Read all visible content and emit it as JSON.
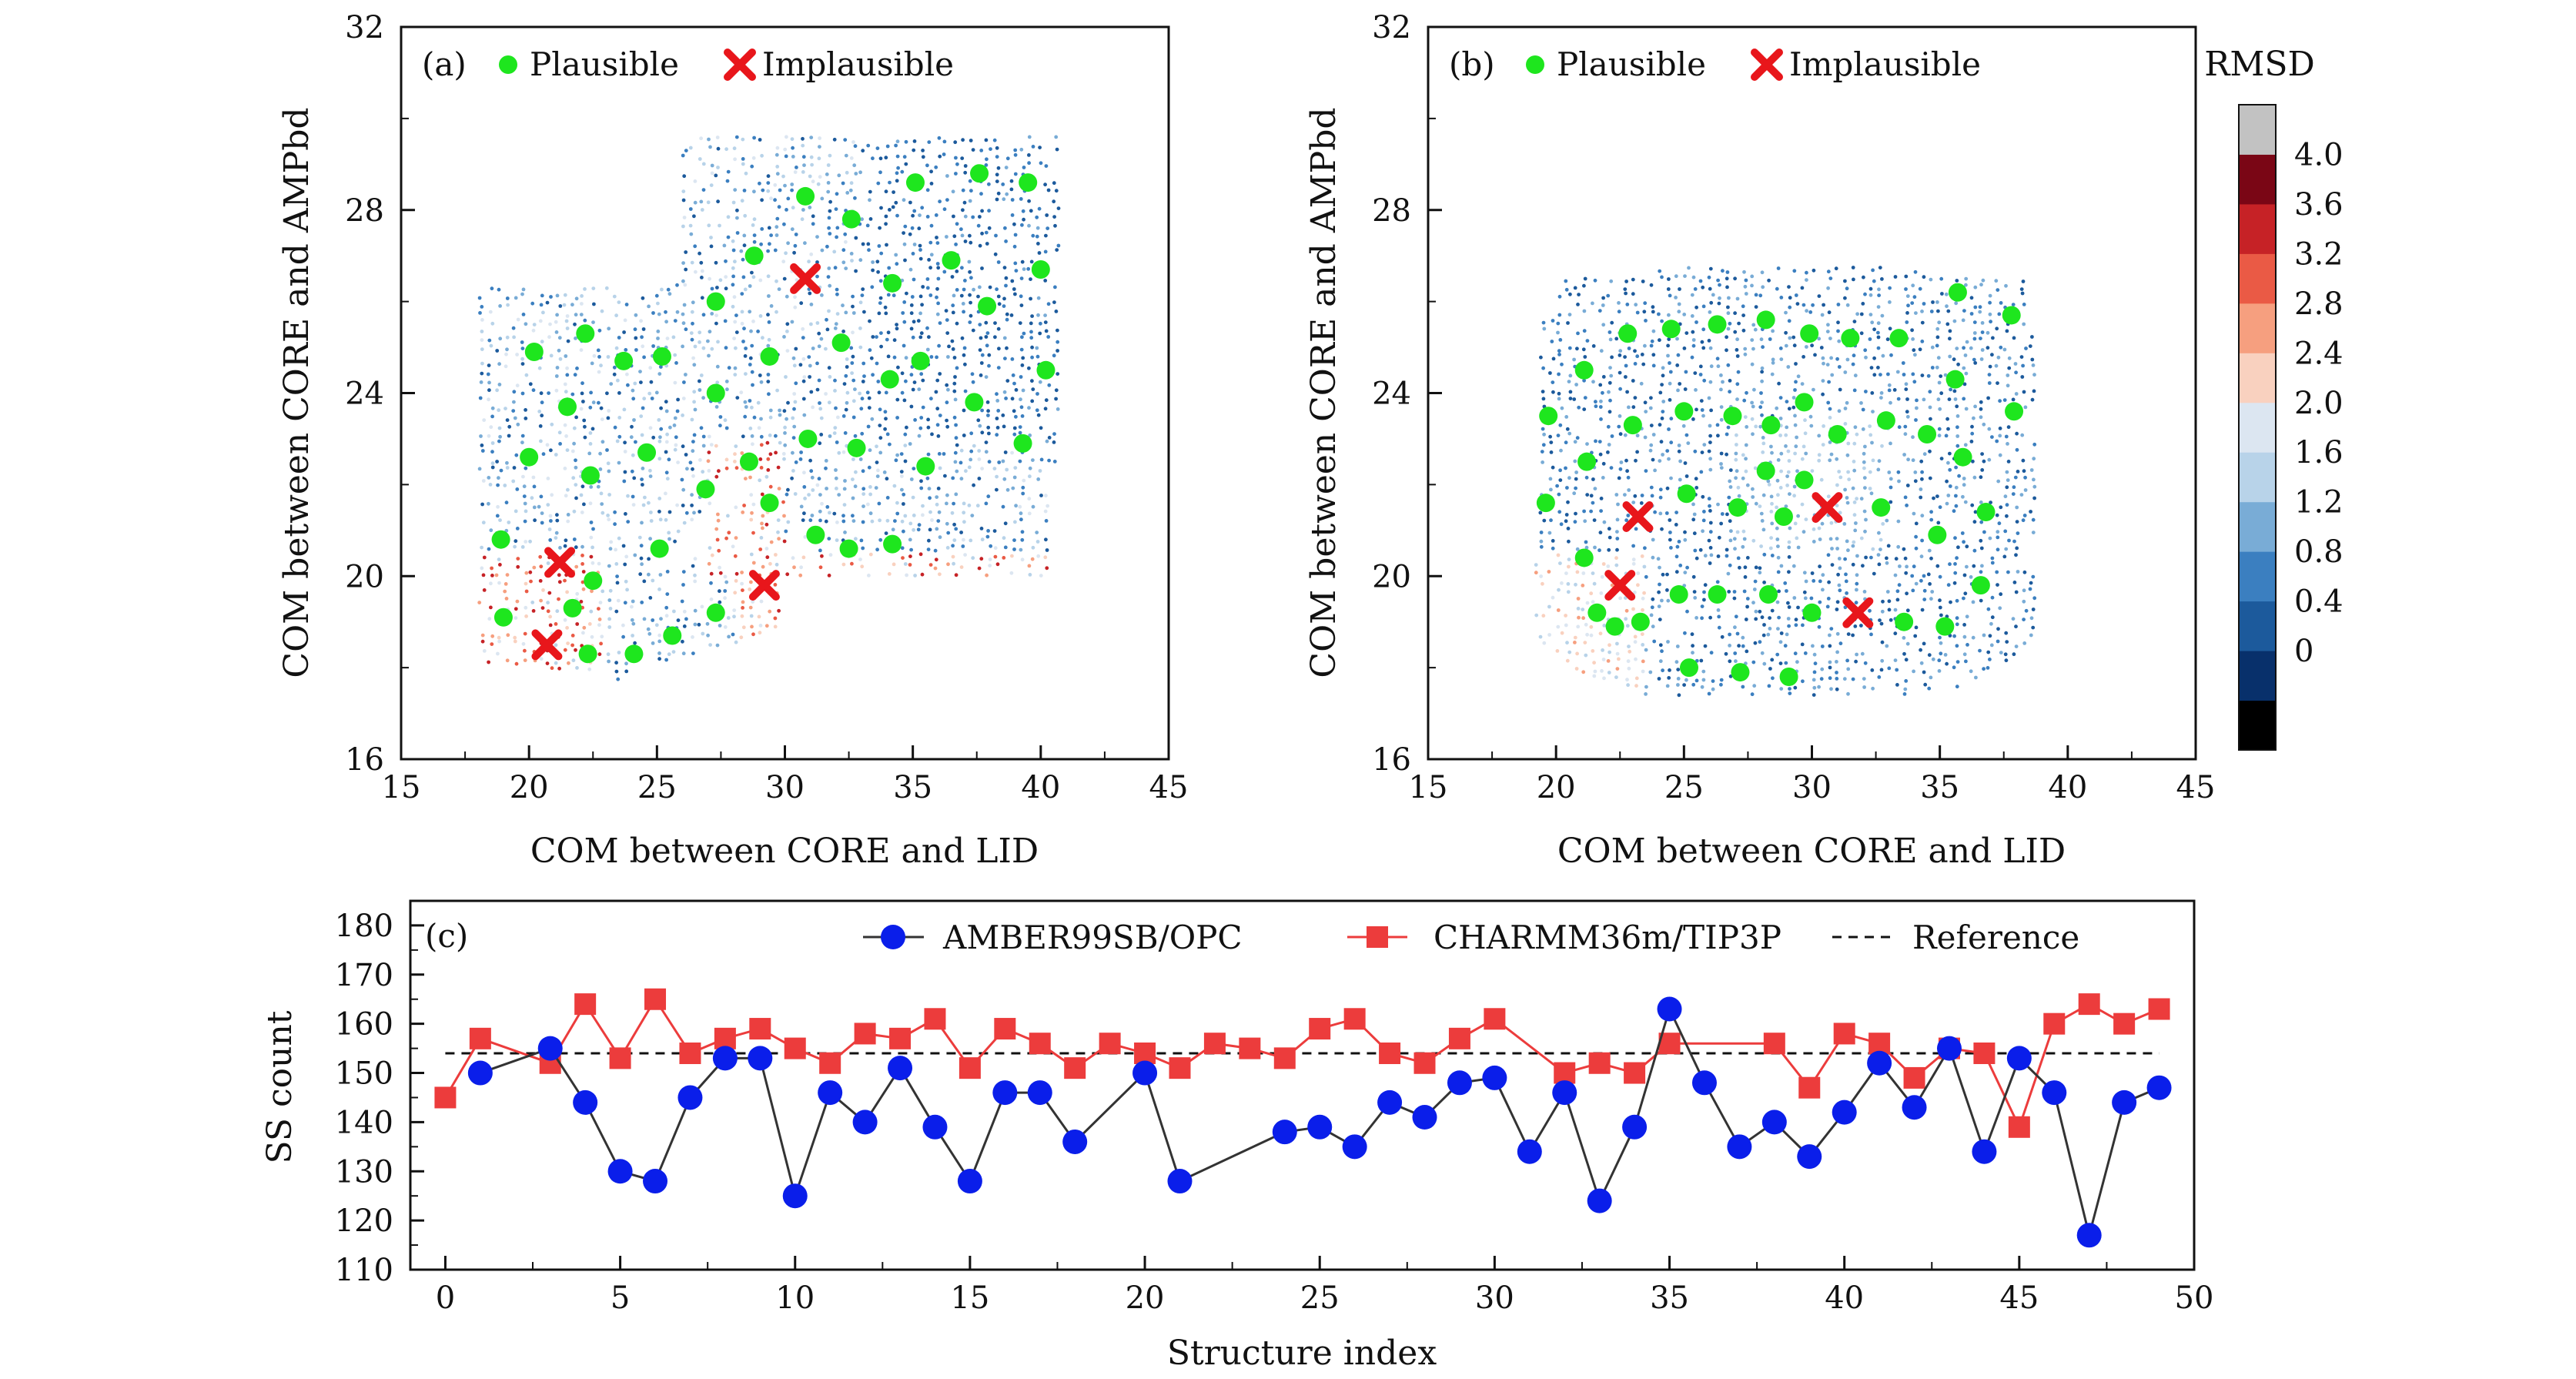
{
  "chart_data": [
    {
      "id": "a",
      "type": "scatter",
      "panel_label": "(a)",
      "xlabel": "COM between CORE and LID",
      "ylabel": "COM between CORE and AMPbd",
      "xlim": [
        15,
        45
      ],
      "ylim": [
        16,
        32
      ],
      "xticks": [
        "15",
        "20",
        "25",
        "30",
        "35",
        "40",
        "45"
      ],
      "yticks": [
        "16",
        "20",
        "24",
        "28",
        "32"
      ],
      "legend": {
        "plausible": "Plausible",
        "implausible": "Implausible",
        "position": "top-left"
      },
      "plausible_points": [
        [
          20.2,
          24.9
        ],
        [
          22.2,
          25.3
        ],
        [
          23.7,
          24.7
        ],
        [
          25.2,
          24.8
        ],
        [
          21.5,
          23.7
        ],
        [
          27.3,
          24.0
        ],
        [
          29.4,
          24.8
        ],
        [
          30.8,
          28.3
        ],
        [
          32.6,
          27.8
        ],
        [
          35.1,
          28.6
        ],
        [
          37.6,
          28.8
        ],
        [
          39.5,
          28.6
        ],
        [
          28.8,
          27.0
        ],
        [
          27.3,
          26.0
        ],
        [
          34.2,
          26.4
        ],
        [
          36.5,
          26.9
        ],
        [
          37.9,
          25.9
        ],
        [
          32.2,
          25.1
        ],
        [
          35.3,
          24.7
        ],
        [
          40.0,
          26.7
        ],
        [
          40.2,
          24.5
        ],
        [
          34.1,
          24.3
        ],
        [
          37.4,
          23.8
        ],
        [
          39.3,
          22.9
        ],
        [
          20.0,
          22.6
        ],
        [
          22.4,
          22.2
        ],
        [
          24.6,
          22.7
        ],
        [
          26.9,
          21.9
        ],
        [
          28.6,
          22.5
        ],
        [
          30.9,
          23.0
        ],
        [
          32.8,
          22.8
        ],
        [
          35.5,
          22.4
        ],
        [
          18.9,
          20.8
        ],
        [
          22.5,
          19.9
        ],
        [
          25.1,
          20.6
        ],
        [
          27.3,
          19.2
        ],
        [
          29.4,
          21.6
        ],
        [
          31.2,
          20.9
        ],
        [
          32.5,
          20.6
        ],
        [
          34.2,
          20.7
        ],
        [
          19.0,
          19.1
        ],
        [
          21.7,
          19.3
        ],
        [
          22.3,
          18.3
        ],
        [
          24.1,
          18.3
        ],
        [
          25.6,
          18.7
        ]
      ],
      "implausible_points": [
        [
          30.8,
          26.5
        ],
        [
          21.2,
          20.3
        ],
        [
          29.2,
          19.8
        ],
        [
          20.7,
          18.5
        ]
      ]
    },
    {
      "id": "b",
      "type": "scatter",
      "panel_label": "(b)",
      "xlabel": "COM between CORE and LID",
      "ylabel": "COM between CORE and AMPbd",
      "xlim": [
        15,
        45
      ],
      "ylim": [
        16,
        32
      ],
      "xticks": [
        "15",
        "20",
        "25",
        "30",
        "35",
        "40",
        "45"
      ],
      "yticks": [
        "16",
        "20",
        "24",
        "28",
        "32"
      ],
      "legend": {
        "plausible": "Plausible",
        "implausible": "Implausible",
        "position": "top-left"
      },
      "plausible_points": [
        [
          21.1,
          24.5
        ],
        [
          22.8,
          25.3
        ],
        [
          24.5,
          25.4
        ],
        [
          26.3,
          25.5
        ],
        [
          28.2,
          25.6
        ],
        [
          29.9,
          25.3
        ],
        [
          31.5,
          25.2
        ],
        [
          33.4,
          25.2
        ],
        [
          35.7,
          26.2
        ],
        [
          37.8,
          25.7
        ],
        [
          19.7,
          23.5
        ],
        [
          23.0,
          23.3
        ],
        [
          25.0,
          23.6
        ],
        [
          26.9,
          23.5
        ],
        [
          28.4,
          23.3
        ],
        [
          29.7,
          23.8
        ],
        [
          31.0,
          23.1
        ],
        [
          32.9,
          23.4
        ],
        [
          34.5,
          23.1
        ],
        [
          35.6,
          24.3
        ],
        [
          37.9,
          23.6
        ],
        [
          21.2,
          22.5
        ],
        [
          25.1,
          21.8
        ],
        [
          28.2,
          22.3
        ],
        [
          29.7,
          22.1
        ],
        [
          32.7,
          21.5
        ],
        [
          35.9,
          22.6
        ],
        [
          19.6,
          21.6
        ],
        [
          27.1,
          21.5
        ],
        [
          28.9,
          21.3
        ],
        [
          34.9,
          20.9
        ],
        [
          36.8,
          21.4
        ],
        [
          21.1,
          20.4
        ],
        [
          24.8,
          19.6
        ],
        [
          26.3,
          19.6
        ],
        [
          28.3,
          19.6
        ],
        [
          30.0,
          19.2
        ],
        [
          33.6,
          19.0
        ],
        [
          35.2,
          18.9
        ],
        [
          36.6,
          19.8
        ],
        [
          21.6,
          19.2
        ],
        [
          22.3,
          18.9
        ],
        [
          23.3,
          19.0
        ],
        [
          25.2,
          18.0
        ],
        [
          27.2,
          17.9
        ],
        [
          29.1,
          17.8
        ]
      ],
      "implausible_points": [
        [
          23.2,
          21.3
        ],
        [
          30.6,
          21.5
        ],
        [
          22.5,
          19.8
        ],
        [
          31.8,
          19.2
        ]
      ]
    },
    {
      "id": "c",
      "type": "line",
      "panel_label": "(c)",
      "xlabel": "Structure index",
      "ylabel": "SS count",
      "xlim": [
        -1,
        50
      ],
      "ylim": [
        110,
        185
      ],
      "xticks": [
        "0",
        "5",
        "10",
        "15",
        "20",
        "25",
        "30",
        "35",
        "40",
        "45",
        "50"
      ],
      "yticks": [
        "110",
        "120",
        "130",
        "140",
        "150",
        "160",
        "170",
        "180"
      ],
      "reference": 154,
      "legend_position": "top-right",
      "series": [
        {
          "name": "AMBER99SB/OPC",
          "color": "#0a1eea",
          "marker": "circle",
          "x": [
            1,
            3,
            4,
            5,
            6,
            7,
            8,
            9,
            10,
            11,
            12,
            13,
            14,
            15,
            16,
            17,
            18,
            20,
            21,
            24,
            25,
            26,
            27,
            28,
            29,
            30,
            31,
            32,
            33,
            34,
            35,
            36,
            37,
            38,
            39,
            40,
            41,
            42,
            43,
            44,
            45,
            46,
            47,
            48,
            49
          ],
          "y": [
            150,
            155,
            144,
            130,
            128,
            145,
            153,
            153,
            125,
            146,
            140,
            151,
            139,
            128,
            146,
            146,
            136,
            150,
            128,
            138,
            139,
            135,
            144,
            141,
            148,
            149,
            134,
            146,
            124,
            139,
            163,
            148,
            135,
            140,
            133,
            142,
            152,
            143,
            155,
            134,
            153,
            146,
            117,
            144,
            147
          ]
        },
        {
          "name": "CHARMM36m/TIP3P",
          "color": "#ec3c3c",
          "marker": "square",
          "x": [
            0,
            1,
            3,
            4,
            5,
            6,
            7,
            8,
            9,
            10,
            11,
            12,
            13,
            14,
            15,
            16,
            17,
            18,
            19,
            20,
            21,
            22,
            23,
            24,
            25,
            26,
            27,
            28,
            29,
            30,
            32,
            33,
            34,
            35,
            38,
            39,
            40,
            41,
            42,
            43,
            44,
            45,
            46,
            47,
            48,
            49
          ],
          "y": [
            145,
            157,
            152,
            164,
            153,
            165,
            154,
            157,
            159,
            155,
            152,
            158,
            157,
            161,
            151,
            159,
            156,
            151,
            156,
            154,
            151,
            156,
            155,
            153,
            159,
            161,
            154,
            152,
            157,
            161,
            150,
            152,
            150,
            156,
            156,
            147,
            158,
            156,
            149,
            155,
            154,
            139,
            160,
            164,
            160,
            163
          ]
        },
        {
          "name": "Reference",
          "color": "#111111",
          "marker": "none",
          "line_style": "dashed"
        }
      ]
    }
  ],
  "colorbar": {
    "title": "RMSD",
    "labels": [
      "4.0",
      "3.6",
      "3.2",
      "2.8",
      "2.4",
      "2.0",
      "1.6",
      "1.2",
      "0.8",
      "0.4",
      "0"
    ],
    "colors": [
      "#000000",
      "#08306b",
      "#1c5a9c",
      "#3b7fc0",
      "#79acd6",
      "#b8d3e9",
      "#dce6f1",
      "#f9d1bf",
      "#f69f7f",
      "#ea5a45",
      "#c62226",
      "#7a0615",
      "#c2c2c2"
    ]
  }
}
